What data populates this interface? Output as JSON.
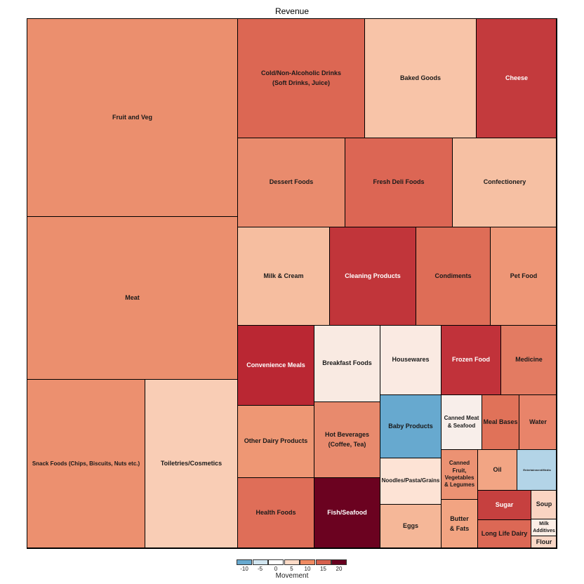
{
  "chart_data": {
    "type": "treemap",
    "title": "Revenue",
    "size_variable": "Revenue",
    "color_variable": "Movement",
    "legend": {
      "title": "Movement",
      "placement": "bottom",
      "ticks": [
        "-10",
        "-5",
        "0",
        "5",
        "10",
        "15",
        "20"
      ],
      "colors": [
        "#67a9cf",
        "#d1e5f0",
        "#ffffff",
        "#fddbc7",
        "#ef8a62",
        "#d6604d",
        "#67001f"
      ]
    },
    "categories": [
      {
        "name": "Fruit and Veg",
        "movement": 9,
        "color": "#eb8f6e"
      },
      {
        "name": "Meat",
        "movement": 9,
        "color": "#eb8f6e"
      },
      {
        "name": "Snack Foods (Chips, Biscuits, Nuts etc.)",
        "movement": 9,
        "color": "#ec906f"
      },
      {
        "name": "Toiletries/Cosmetics",
        "movement": 4,
        "color": "#f9cdb5"
      },
      {
        "name": "Cold/Non-Alcoholic Drinks\n(Soft Drinks, Juice)",
        "movement": 13,
        "color": "#dc6753"
      },
      {
        "name": "Baked Goods",
        "movement": 5,
        "color": "#f8c4a8"
      },
      {
        "name": "Cheese",
        "movement": 17,
        "color": "#c33a3d"
      },
      {
        "name": "Dessert Foods",
        "movement": 10,
        "color": "#e98b6d"
      },
      {
        "name": "Fresh Deli Foods",
        "movement": 13,
        "color": "#dc6654"
      },
      {
        "name": "Confectionery",
        "movement": 5,
        "color": "#f6c0a3"
      },
      {
        "name": "Milk & Cream",
        "movement": 6,
        "color": "#f6bea0"
      },
      {
        "name": "Cleaning Products",
        "movement": 17,
        "color": "#c1353a"
      },
      {
        "name": "Condiments",
        "movement": 12,
        "color": "#de6d57"
      },
      {
        "name": "Pet Food",
        "movement": 9,
        "color": "#ee9676"
      },
      {
        "name": "Convenience Meals",
        "movement": 18,
        "color": "#ba2733"
      },
      {
        "name": "Breakfast Foods",
        "movement": 1,
        "color": "#f9eae2"
      },
      {
        "name": "Housewares",
        "movement": 1,
        "color": "#faeae2"
      },
      {
        "name": "Frozen Food",
        "movement": 17,
        "color": "#c1323a"
      },
      {
        "name": "Medicine",
        "movement": 11,
        "color": "#e37b62"
      },
      {
        "name": "Other Dairy Products",
        "movement": 9,
        "color": "#ee9774"
      },
      {
        "name": "Hot Beverages\n(Coffee, Tea)",
        "movement": 10,
        "color": "#e88a6d"
      },
      {
        "name": "Health Foods",
        "movement": 12,
        "color": "#df6e58"
      },
      {
        "name": "Fish/Seafood",
        "movement": 22,
        "color": "#6b0220"
      },
      {
        "name": "Baby Products",
        "movement": -10,
        "color": "#67a9cf"
      },
      {
        "name": "Noodles/Pasta/Grains",
        "movement": 2,
        "color": "#fde3d5"
      },
      {
        "name": "Eggs",
        "movement": 6,
        "color": "#f5b798"
      },
      {
        "name": "Canned Meat\n& Seafood",
        "movement": 1,
        "color": "#f8eeea"
      },
      {
        "name": "Meal Bases",
        "movement": 12,
        "color": "#e07259"
      },
      {
        "name": "Water",
        "movement": 11,
        "color": "#e8846a"
      },
      {
        "name": "Canned\nFruit,\nVegetables\n& Legumes",
        "movement": 9,
        "color": "#ec9273"
      },
      {
        "name": "Oil",
        "movement": 8,
        "color": "#f2a584"
      },
      {
        "name": "Entertainment/Media",
        "movement": -6,
        "color": "#b3d4e7"
      },
      {
        "name": "Butter\n& Fats",
        "movement": 8,
        "color": "#f2a482"
      },
      {
        "name": "Sugar",
        "movement": 16,
        "color": "#c6403f"
      },
      {
        "name": "Long Life Dairy",
        "movement": 13,
        "color": "#dc6855"
      },
      {
        "name": "Soup",
        "movement": 4,
        "color": "#fad4c2"
      },
      {
        "name": "Milk\nAdditives",
        "movement": 2,
        "color": "#fceee6"
      },
      {
        "name": "Flour",
        "movement": 3,
        "color": "#f9d7c6"
      }
    ]
  }
}
